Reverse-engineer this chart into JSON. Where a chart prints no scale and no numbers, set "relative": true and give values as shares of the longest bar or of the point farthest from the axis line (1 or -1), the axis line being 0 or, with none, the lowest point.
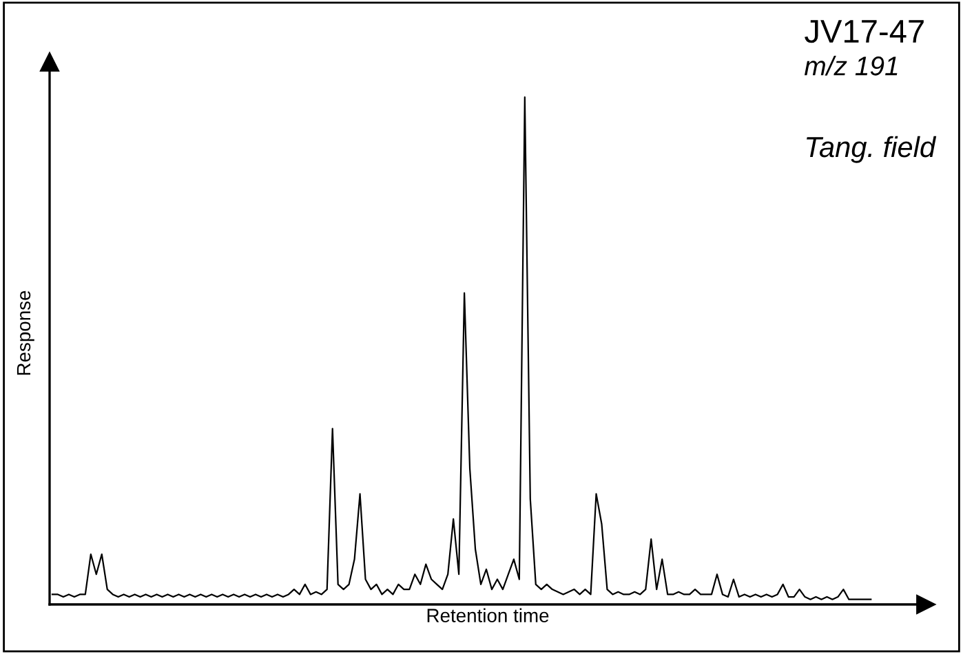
{
  "chart_data": {
    "type": "line",
    "relative": true,
    "title": "JV17-47",
    "subtitle": "m/z 191",
    "xlabel": "Retention time",
    "ylabel": "Response",
    "annotations": [
      "Tang. field"
    ],
    "categories": [
      null,
      null,
      null,
      null,
      null,
      null,
      null,
      null,
      null,
      null,
      null,
      null,
      null,
      null,
      null,
      null,
      null,
      null,
      null,
      null,
      null,
      null,
      null,
      null,
      null,
      null,
      null,
      null,
      null,
      null,
      null,
      null,
      null,
      null,
      null,
      null,
      null,
      null,
      null,
      null,
      null,
      null,
      null,
      null,
      null,
      null,
      null,
      null,
      null,
      null,
      null,
      null,
      null,
      null,
      null,
      null,
      null,
      null,
      null,
      null,
      null,
      null,
      null,
      null,
      null,
      null,
      null,
      null,
      null,
      null,
      null,
      null,
      null,
      null,
      null,
      null,
      null,
      null,
      null,
      null,
      null,
      null,
      null,
      null,
      null,
      null,
      null,
      null,
      null,
      null,
      null,
      null,
      null,
      null,
      null,
      null,
      null,
      null,
      null,
      null,
      null,
      null,
      null,
      null,
      null,
      null,
      null,
      null,
      null,
      null,
      null,
      null,
      null,
      null,
      null,
      null,
      null,
      null,
      null,
      null,
      null,
      null,
      null,
      null,
      null,
      null,
      null,
      null,
      null,
      null,
      null,
      null,
      null,
      null,
      null,
      null,
      null,
      null,
      null,
      null,
      null,
      null,
      null,
      null,
      null,
      null,
      null,
      null,
      null,
      null
    ],
    "series": [
      {
        "color": "#000000",
        "values": [
          0.01,
          0.01,
          0.005,
          0.01,
          0.005,
          0.01,
          0.01,
          0.09,
          0.05,
          0.09,
          0.02,
          0.01,
          0.005,
          0.01,
          0.005,
          0.01,
          0.005,
          0.01,
          0.005,
          0.01,
          0.005,
          0.01,
          0.005,
          0.01,
          0.005,
          0.01,
          0.005,
          0.01,
          0.005,
          0.01,
          0.005,
          0.01,
          0.005,
          0.01,
          0.005,
          0.01,
          0.005,
          0.01,
          0.005,
          0.01,
          0.005,
          0.01,
          0.005,
          0.01,
          0.02,
          0.01,
          0.03,
          0.01,
          0.015,
          0.01,
          0.02,
          0.34,
          0.03,
          0.02,
          0.03,
          0.08,
          0.21,
          0.04,
          0.02,
          0.03,
          0.01,
          0.02,
          0.01,
          0.03,
          0.02,
          0.02,
          0.05,
          0.03,
          0.07,
          0.04,
          0.03,
          0.02,
          0.05,
          0.16,
          0.05,
          0.61,
          0.26,
          0.1,
          0.03,
          0.06,
          0.02,
          0.04,
          0.02,
          0.05,
          0.08,
          0.04,
          1.0,
          0.2,
          0.03,
          0.02,
          0.03,
          0.02,
          0.015,
          0.01,
          0.015,
          0.02,
          0.01,
          0.02,
          0.01,
          0.21,
          0.15,
          0.02,
          0.01,
          0.015,
          0.01,
          0.01,
          0.015,
          0.01,
          0.02,
          0.12,
          0.02,
          0.08,
          0.01,
          0.01,
          0.015,
          0.01,
          0.01,
          0.02,
          0.01,
          0.01,
          0.01,
          0.05,
          0.01,
          0.005,
          0.04,
          0.005,
          0.01,
          0.005,
          0.01,
          0.005,
          0.01,
          0.005,
          0.01,
          0.03,
          0.005,
          0.005,
          0.02,
          0.005,
          0.0,
          0.005,
          0.0,
          0.005,
          0.0,
          0.005,
          0.02,
          0.0,
          0.0,
          0.0,
          0.0,
          0.0
        ]
      }
    ],
    "marker": "none",
    "line_style": "solid"
  }
}
